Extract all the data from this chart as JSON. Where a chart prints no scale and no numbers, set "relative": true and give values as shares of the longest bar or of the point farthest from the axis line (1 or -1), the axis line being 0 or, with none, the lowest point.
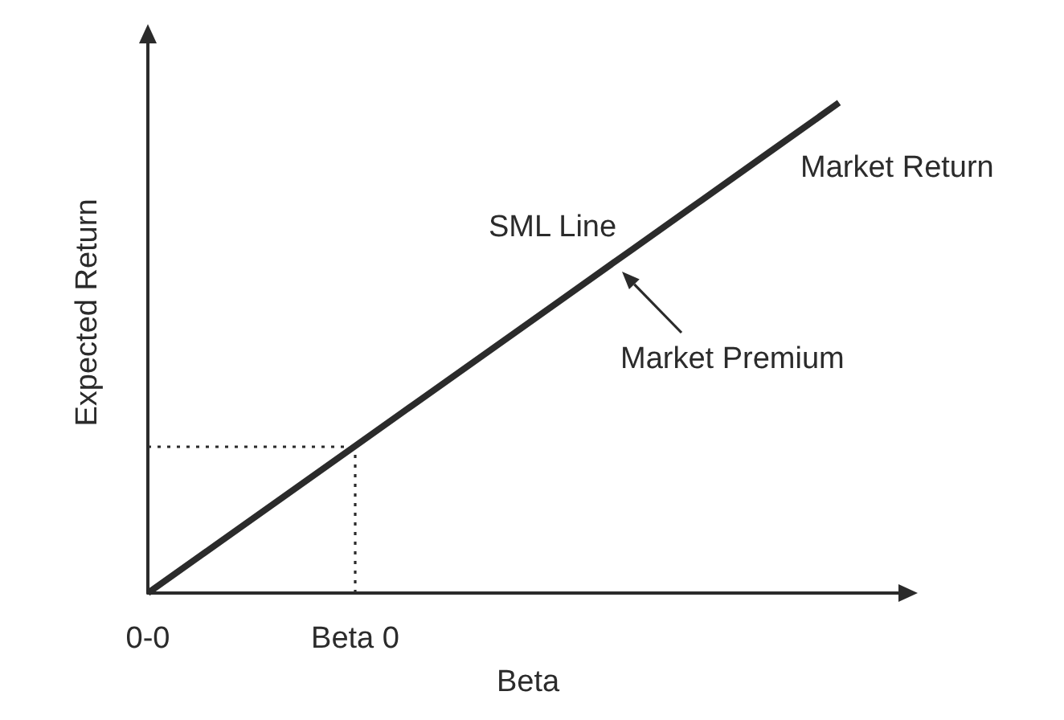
{
  "chart_data": {
    "type": "line",
    "xlabel": "Beta",
    "ylabel": "Expected Return",
    "categories": [
      "0-0",
      null,
      null,
      "Beta 0",
      null,
      null,
      null,
      null,
      null,
      null,
      null,
      null
    ],
    "values": [
      0,
      0.1,
      0.2,
      0.3,
      0.4,
      0.5,
      0.6,
      0.7,
      0.8,
      0.9,
      1,
      null
    ],
    "color": "#2b2b2b",
    "relative": true,
    "ref_lines": [
      {
        "axis": "x",
        "value": "Beta 0",
        "line_style": "dotted",
        "color": "#2b2b2b"
      },
      {
        "axis": "y",
        "value": 0.3,
        "line_style": "dotted",
        "color": "#2b2b2b"
      }
    ],
    "annotations": [
      "SML Line",
      "Market Return",
      "Market Premium"
    ]
  }
}
